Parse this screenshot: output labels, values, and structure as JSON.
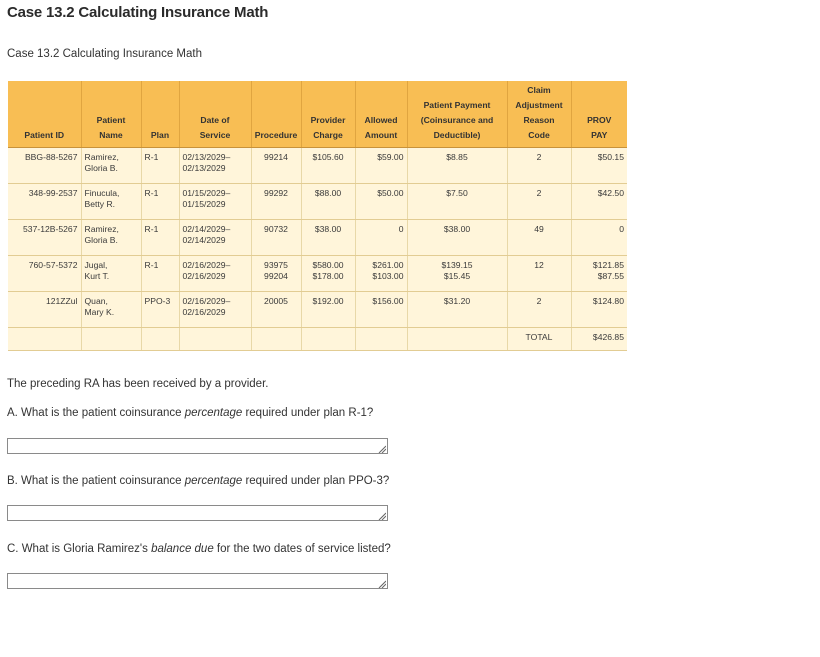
{
  "page": {
    "title": "Case 13.2 Calculating Insurance Math",
    "subtitle": "Case 13.2 Calculating Insurance Math"
  },
  "table": {
    "headers": [
      [
        "Patient ID"
      ],
      [
        "Patient",
        "Name"
      ],
      [
        "Plan"
      ],
      [
        "Date of",
        "Service"
      ],
      [
        "Procedure"
      ],
      [
        "Provider",
        "Charge"
      ],
      [
        "Allowed",
        "Amount"
      ],
      [
        "Patient Payment",
        "(Coinsurance and",
        "Deductible)"
      ],
      [
        "Claim",
        "Adjustment",
        "Reason",
        "Code"
      ],
      [
        "PROV",
        "PAY"
      ]
    ],
    "rows": [
      {
        "patient_id": "BBG-88-5267",
        "name": [
          "Ramirez,",
          "Gloria B."
        ],
        "plan": "R-1",
        "dos": [
          "02/13/2029–",
          "02/13/2029"
        ],
        "procedure": [
          "99214"
        ],
        "charge": [
          "$105.60"
        ],
        "allowed": [
          "$59.00"
        ],
        "patient_payment": [
          "$8.85"
        ],
        "reason_code": "2",
        "prov_pay": [
          "$50.15"
        ]
      },
      {
        "patient_id": "348-99-2537",
        "name": [
          "Finucula,",
          "Betty R."
        ],
        "plan": "R-1",
        "dos": [
          "01/15/2029–",
          "01/15/2029"
        ],
        "procedure": [
          "99292"
        ],
        "charge": [
          "$88.00"
        ],
        "allowed": [
          "$50.00"
        ],
        "patient_payment": [
          "$7.50"
        ],
        "reason_code": "2",
        "prov_pay": [
          "$42.50"
        ]
      },
      {
        "patient_id": "537-12B-5267",
        "name": [
          "Ramirez,",
          "Gloria B."
        ],
        "plan": "R-1",
        "dos": [
          "02/14/2029–",
          "02/14/2029"
        ],
        "procedure": [
          "90732"
        ],
        "charge": [
          "$38.00"
        ],
        "allowed": [
          "0"
        ],
        "patient_payment": [
          "$38.00"
        ],
        "reason_code": "49",
        "prov_pay": [
          "0"
        ]
      },
      {
        "patient_id": "760-57-5372",
        "name": [
          "Jugal,",
          "Kurt T."
        ],
        "plan": "R-1",
        "dos": [
          "02/16/2029–",
          "02/16/2029"
        ],
        "procedure": [
          "93975",
          "99204"
        ],
        "charge": [
          "$580.00",
          "$178.00"
        ],
        "allowed": [
          "$261.00",
          "$103.00"
        ],
        "patient_payment": [
          "$139.15",
          "$15.45"
        ],
        "reason_code": "12",
        "prov_pay": [
          "$121.85",
          "$87.55"
        ]
      },
      {
        "patient_id": "121ZZul",
        "name": [
          "Quan,",
          "Mary K."
        ],
        "plan": "PPO-3",
        "dos": [
          "02/16/2029–",
          "02/16/2029"
        ],
        "procedure": [
          "20005"
        ],
        "charge": [
          "$192.00"
        ],
        "allowed": [
          "$156.00"
        ],
        "patient_payment": [
          "$31.20"
        ],
        "reason_code": "2",
        "prov_pay": [
          "$124.80"
        ]
      }
    ],
    "total_label": "TOTAL",
    "total_value": "$426.85"
  },
  "questions": {
    "intro": "The preceding RA has been received by a provider.",
    "a": {
      "pre": "A. What is the patient coinsurance ",
      "em": "percentage",
      "post": " required under plan R-1?",
      "value": ""
    },
    "b": {
      "pre": "B. What is the patient coinsurance ",
      "em": "percentage",
      "post": " required under plan PPO-3?",
      "value": ""
    },
    "c": {
      "pre": "C. What is Gloria Ramirez's ",
      "em": "balance due",
      "post": " for the two dates of service listed?",
      "value": ""
    }
  }
}
